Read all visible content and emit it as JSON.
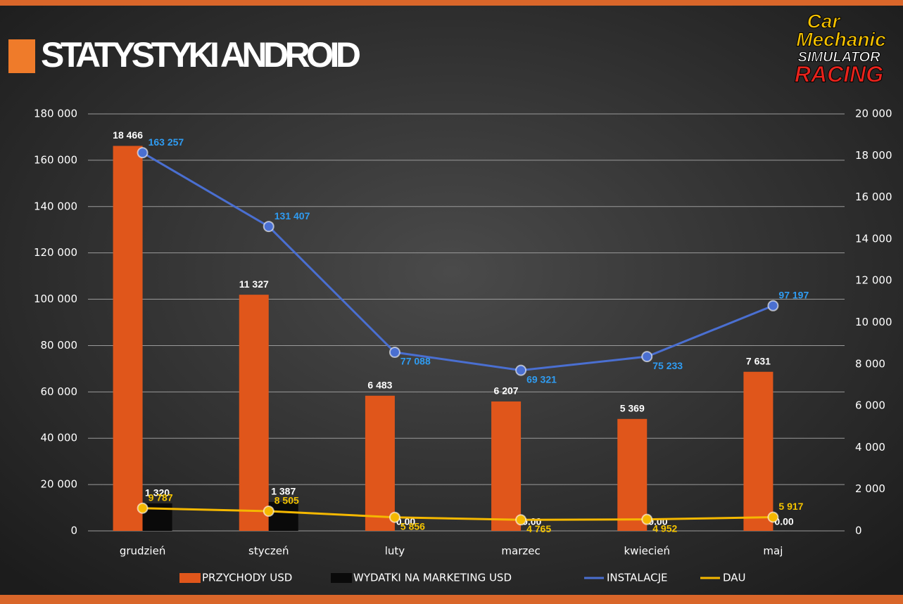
{
  "chart_data": {
    "type": "bar",
    "title": "STATYSTYKI ANDROID",
    "logo": [
      "Car",
      "Mechanic",
      "SIMULATOR",
      "RACING"
    ],
    "categories": [
      "grudzień",
      "styczeń",
      "luty",
      "marzec",
      "kwiecień",
      "maj"
    ],
    "ylim": [
      0,
      180000
    ],
    "yticks": [
      {
        "value": 0,
        "label": "0"
      },
      {
        "value": 20000,
        "label": "20 000"
      },
      {
        "value": 40000,
        "label": "40 000"
      },
      {
        "value": 60000,
        "label": "60 000"
      },
      {
        "value": 80000,
        "label": "80 000"
      },
      {
        "value": 100000,
        "label": "100 000"
      },
      {
        "value": 120000,
        "label": "120 000"
      },
      {
        "value": 140000,
        "label": "140 000"
      },
      {
        "value": 160000,
        "label": "160 000"
      },
      {
        "value": 180000,
        "label": "180 000"
      }
    ],
    "y2lim": [
      0,
      20000
    ],
    "y2ticks": [
      {
        "value": 0,
        "label": "0"
      },
      {
        "value": 2000,
        "label": "2 000"
      },
      {
        "value": 4000,
        "label": "4 000"
      },
      {
        "value": 6000,
        "label": "6 000"
      },
      {
        "value": 8000,
        "label": "8 000"
      },
      {
        "value": 10000,
        "label": "10 000"
      },
      {
        "value": 12000,
        "label": "12 000"
      },
      {
        "value": 14000,
        "label": "14 000"
      },
      {
        "value": 16000,
        "label": "16 000"
      },
      {
        "value": 18000,
        "label": "18 000"
      },
      {
        "value": 20000,
        "label": "20 000"
      }
    ],
    "grid": true,
    "series": [
      {
        "name": "PRZYCHODY USD",
        "type": "bar",
        "axis": "y2",
        "color": "#e0561b",
        "label_color": "#ffffff",
        "values": [
          18466,
          11327,
          6483,
          6207,
          5369,
          7631
        ],
        "value_labels": [
          "18 466",
          "11 327",
          "6 483",
          "6 207",
          "5 369",
          "7 631"
        ]
      },
      {
        "name": "WYDATKI NA MARKETING USD",
        "type": "bar",
        "axis": "y2",
        "color": "#0a0a0a",
        "label_color": "#ffffff",
        "values": [
          1320,
          1387,
          0,
          0,
          0,
          0
        ],
        "value_labels": [
          "1 320",
          "1 387",
          "0.00",
          "0.00",
          "0.00",
          "0.00"
        ]
      },
      {
        "name": "INSTALACJE",
        "type": "line",
        "color": "#4a6fd1",
        "label_color": "#2f9cf2",
        "values": [
          163257,
          131407,
          77088,
          69321,
          75233,
          97197
        ],
        "value_labels": [
          "163 257",
          "131 407",
          "77 088",
          "69 321",
          "75 233",
          "97 197"
        ]
      },
      {
        "name": "DAU",
        "type": "line",
        "color": "#f5b800",
        "label_color": "#f5c400",
        "values": [
          9787,
          8505,
          5856,
          4765,
          4952,
          5917
        ],
        "value_labels": [
          "9 787",
          "8 505",
          "5 856",
          "4 765",
          "4 952",
          "5 917"
        ]
      }
    ]
  }
}
